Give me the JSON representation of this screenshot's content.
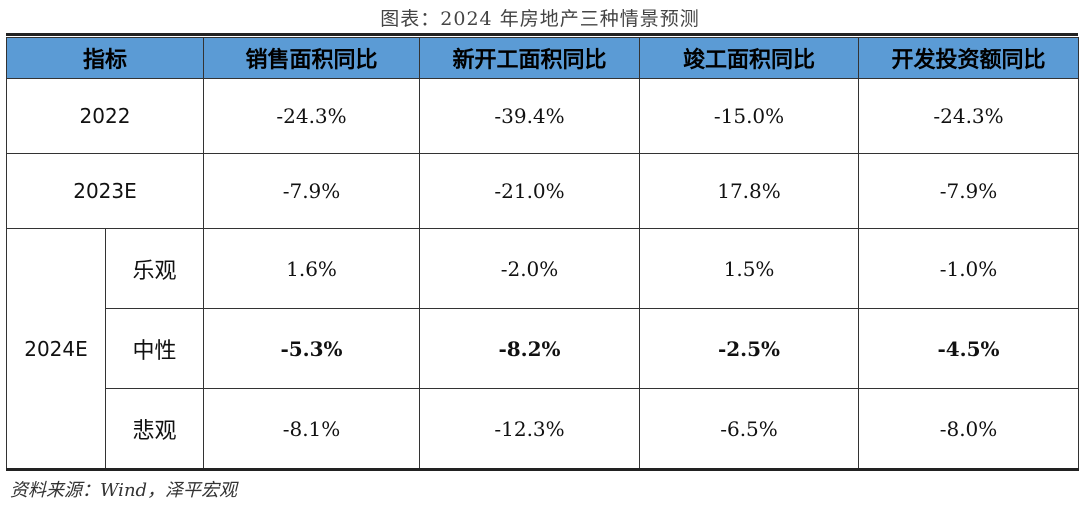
{
  "title": "图表：2024 年房地产三种情景预测",
  "headers": [
    "指标",
    "销售面积同比",
    "新开工面积同比",
    "竣工面积同比",
    "开发投资额同比"
  ],
  "rows": [
    {
      "label": "2022",
      "values": [
        "-24.3%",
        "-39.4%",
        "-15.0%",
        "-24.3%"
      ]
    },
    {
      "label": "2023E",
      "values": [
        "-7.9%",
        "-21.0%",
        "17.8%",
        "-7.9%"
      ]
    }
  ],
  "group_label": "2024E",
  "scenarios": [
    {
      "label": "乐观",
      "values": [
        "1.6%",
        "-2.0%",
        "1.5%",
        "-1.0%"
      ],
      "bold": false
    },
    {
      "label": "中性",
      "values": [
        "-5.3%",
        "-8.2%",
        "-2.5%",
        "-4.5%"
      ],
      "bold": true
    },
    {
      "label": "悲观",
      "values": [
        "-8.1%",
        "-12.3%",
        "-6.5%",
        "-8.0%"
      ],
      "bold": false
    }
  ],
  "source": "资料来源：Wind，泽平宏观",
  "colors": {
    "header_bg": "#5b9bd5"
  }
}
